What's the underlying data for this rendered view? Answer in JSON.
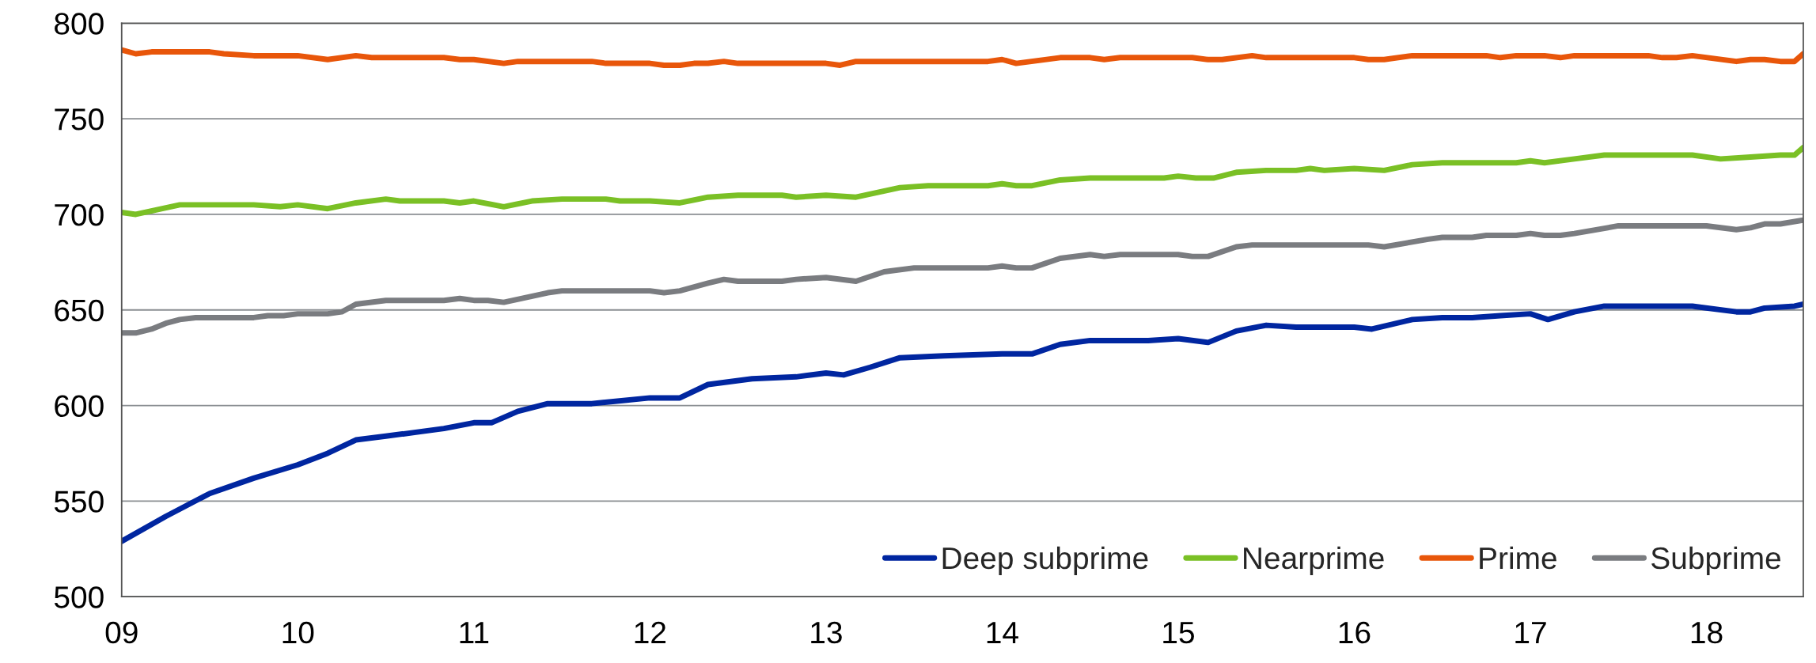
{
  "chart_data": {
    "type": "line",
    "xlim": [
      9,
      18.55
    ],
    "ylim": [
      500,
      800
    ],
    "xticks": [
      {
        "value": 9,
        "label": "09"
      },
      10,
      11,
      12,
      13,
      14,
      15,
      16,
      17,
      18
    ],
    "yticks": [
      500,
      550,
      600,
      650,
      700,
      750,
      800
    ],
    "grid": "y",
    "legend": "bottom right",
    "line_style": "solid",
    "marker": "none",
    "series": [
      {
        "name": "Deep subprime",
        "color": "#0026a0",
        "x": [
          9.0,
          9.25,
          9.5,
          9.75,
          10.0,
          10.17,
          10.33,
          10.5,
          10.67,
          10.83,
          11.0,
          11.1,
          11.25,
          11.42,
          11.67,
          12.0,
          12.17,
          12.33,
          12.58,
          12.83,
          13.0,
          13.1,
          13.25,
          13.42,
          13.67,
          14.0,
          14.17,
          14.33,
          14.5,
          14.83,
          15.0,
          15.17,
          15.33,
          15.5,
          15.67,
          16.0,
          16.1,
          16.33,
          16.5,
          16.67,
          16.83,
          17.0,
          17.1,
          17.25,
          17.42,
          17.92,
          18.17,
          18.25,
          18.33,
          18.5,
          18.55
        ],
        "values": [
          529,
          542,
          554,
          562,
          569,
          575,
          582,
          584,
          586,
          588,
          591,
          591,
          597,
          601,
          601,
          604,
          604,
          611,
          614,
          615,
          617,
          616,
          620,
          625,
          626,
          627,
          627,
          632,
          634,
          634,
          635,
          633,
          639,
          642,
          641,
          641,
          640,
          645,
          646,
          646,
          647,
          648,
          645,
          649,
          652,
          652,
          649,
          649,
          651,
          652,
          653
        ]
      },
      {
        "name": "Nearprime",
        "color": "#7ac025",
        "x": [
          9.0,
          9.08,
          9.33,
          9.75,
          9.9,
          10.0,
          10.17,
          10.33,
          10.5,
          10.58,
          10.83,
          10.92,
          11.0,
          11.17,
          11.33,
          11.5,
          11.75,
          11.83,
          12.0,
          12.17,
          12.33,
          12.5,
          12.75,
          12.83,
          13.0,
          13.17,
          13.42,
          13.58,
          13.92,
          14.0,
          14.08,
          14.17,
          14.33,
          14.5,
          14.92,
          15.0,
          15.1,
          15.2,
          15.33,
          15.5,
          15.67,
          15.75,
          15.83,
          16.0,
          16.17,
          16.33,
          16.5,
          16.92,
          17.0,
          17.08,
          17.25,
          17.42,
          17.92,
          18.08,
          18.25,
          18.42,
          18.5,
          18.55
        ],
        "values": [
          701,
          700,
          705,
          705,
          704,
          705,
          703,
          706,
          708,
          707,
          707,
          706,
          707,
          704,
          707,
          708,
          708,
          707,
          707,
          706,
          709,
          710,
          710,
          709,
          710,
          709,
          714,
          715,
          715,
          716,
          715,
          715,
          718,
          719,
          719,
          720,
          719,
          719,
          722,
          723,
          723,
          724,
          723,
          724,
          723,
          726,
          727,
          727,
          728,
          727,
          729,
          731,
          731,
          729,
          730,
          731,
          731,
          735
        ]
      },
      {
        "name": "Prime",
        "color": "#e8560a",
        "x": [
          9.0,
          9.08,
          9.17,
          9.5,
          9.58,
          9.75,
          10.0,
          10.17,
          10.33,
          10.42,
          10.83,
          10.92,
          11.0,
          11.17,
          11.25,
          11.67,
          11.75,
          12.0,
          12.08,
          12.17,
          12.25,
          12.33,
          12.42,
          12.5,
          13.0,
          13.08,
          13.17,
          13.92,
          14.0,
          14.08,
          14.33,
          14.5,
          14.58,
          14.67,
          15.08,
          15.17,
          15.25,
          15.42,
          15.5,
          16.0,
          16.08,
          16.17,
          16.33,
          16.75,
          16.83,
          16.92,
          17.08,
          17.17,
          17.25,
          17.67,
          17.75,
          17.83,
          17.92,
          18.17,
          18.25,
          18.33,
          18.42,
          18.5,
          18.55
        ],
        "values": [
          786,
          784,
          785,
          785,
          784,
          783,
          783,
          781,
          783,
          782,
          782,
          781,
          781,
          779,
          780,
          780,
          779,
          779,
          778,
          778,
          779,
          779,
          780,
          779,
          779,
          778,
          780,
          780,
          781,
          779,
          782,
          782,
          781,
          782,
          782,
          781,
          781,
          783,
          782,
          782,
          781,
          781,
          783,
          783,
          782,
          783,
          783,
          782,
          783,
          783,
          782,
          782,
          783,
          780,
          781,
          781,
          780,
          780,
          784
        ]
      },
      {
        "name": "Subprime",
        "color": "#7a7c80",
        "x": [
          9.0,
          9.08,
          9.17,
          9.25,
          9.33,
          9.42,
          9.75,
          9.83,
          9.92,
          10.0,
          10.17,
          10.25,
          10.33,
          10.5,
          10.83,
          10.92,
          11.0,
          11.08,
          11.17,
          11.42,
          11.5,
          12.0,
          12.08,
          12.17,
          12.33,
          12.42,
          12.5,
          12.75,
          12.83,
          13.0,
          13.17,
          13.33,
          13.5,
          13.92,
          14.0,
          14.08,
          14.17,
          14.33,
          14.5,
          14.58,
          14.67,
          15.0,
          15.08,
          15.17,
          15.33,
          15.42,
          16.08,
          16.17,
          16.42,
          16.5,
          16.67,
          16.75,
          16.92,
          17.0,
          17.08,
          17.17,
          17.25,
          17.5,
          18.0,
          18.17,
          18.25,
          18.33,
          18.42,
          18.55
        ],
        "values": [
          638,
          638,
          640,
          643,
          645,
          646,
          646,
          647,
          647,
          648,
          648,
          649,
          653,
          655,
          655,
          656,
          655,
          655,
          654,
          659,
          660,
          660,
          659,
          660,
          664,
          666,
          665,
          665,
          666,
          667,
          665,
          670,
          672,
          672,
          673,
          672,
          672,
          677,
          679,
          678,
          679,
          679,
          678,
          678,
          683,
          684,
          684,
          683,
          687,
          688,
          688,
          689,
          689,
          690,
          689,
          689,
          690,
          694,
          694,
          692,
          693,
          695,
          695,
          697
        ]
      }
    ]
  }
}
